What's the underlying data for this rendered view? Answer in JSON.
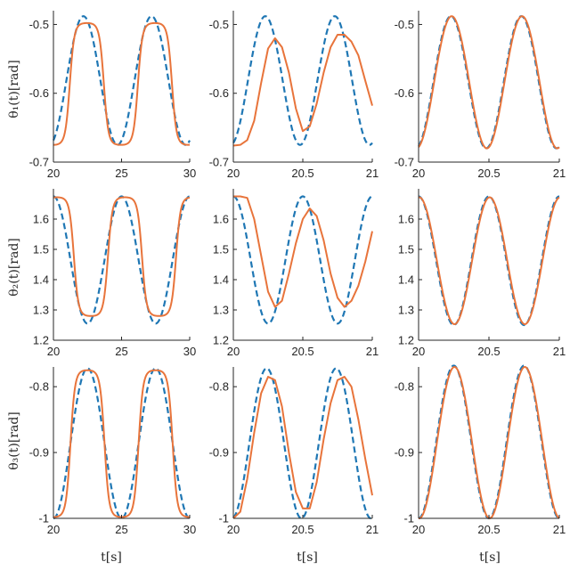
{
  "figure": {
    "row_labels": [
      "θ₁(t)[rad]",
      "θ₂(t)[rad]",
      "θ₃(t)[rad]"
    ],
    "x_label": "t[s]",
    "colors": {
      "reference": "#1f77b4",
      "actual": "#e8743b",
      "axes": "#262626"
    }
  },
  "chart_data": [
    {
      "type": "line",
      "panel": "r1c1",
      "xlim": [
        20,
        30
      ],
      "ylim": [
        -0.7,
        -0.48
      ],
      "xticks": [
        20,
        25,
        30
      ],
      "yticks": [
        -0.7,
        -0.6,
        -0.5
      ],
      "series": [
        {
          "style": "dashed",
          "model": "sine",
          "period": 5.0,
          "peak_x": 22.2,
          "min": -0.675,
          "max": -0.488
        },
        {
          "style": "solid",
          "model": "flat-top",
          "period": 5.0,
          "peak_x": 22.45,
          "min": -0.675,
          "max": -0.498
        }
      ]
    },
    {
      "type": "line",
      "panel": "r1c2",
      "xlim": [
        20,
        21
      ],
      "ylim": [
        -0.7,
        -0.48
      ],
      "xticks": [
        20,
        20.5,
        21
      ],
      "yticks": [
        -0.7,
        -0.6,
        -0.5
      ],
      "series": [
        {
          "style": "dashed",
          "model": "sine",
          "period": 0.5,
          "peak_x": 20.23,
          "min": -0.675,
          "max": -0.488
        },
        {
          "style": "solid",
          "points": [
            [
              20,
              -0.676
            ],
            [
              20.05,
              -0.675
            ],
            [
              20.1,
              -0.668
            ],
            [
              20.15,
              -0.64
            ],
            [
              20.2,
              -0.585
            ],
            [
              20.25,
              -0.535
            ],
            [
              20.3,
              -0.52
            ],
            [
              20.35,
              -0.533
            ],
            [
              20.4,
              -0.57
            ],
            [
              20.45,
              -0.622
            ],
            [
              20.5,
              -0.655
            ],
            [
              20.55,
              -0.648
            ],
            [
              20.6,
              -0.615
            ],
            [
              20.65,
              -0.57
            ],
            [
              20.7,
              -0.533
            ],
            [
              20.75,
              -0.515
            ],
            [
              20.8,
              -0.515
            ],
            [
              20.85,
              -0.525
            ],
            [
              20.9,
              -0.545
            ],
            [
              20.95,
              -0.582
            ],
            [
              21,
              -0.618
            ]
          ]
        }
      ]
    },
    {
      "type": "line",
      "panel": "r1c3",
      "xlim": [
        20,
        21
      ],
      "ylim": [
        -0.7,
        -0.48
      ],
      "xticks": [
        20,
        20.5,
        21
      ],
      "yticks": [
        -0.7,
        -0.6,
        -0.5
      ],
      "series": [
        {
          "style": "dashed",
          "model": "sine",
          "period": 0.5,
          "peak_x": 20.23,
          "min": -0.68,
          "max": -0.488
        },
        {
          "style": "solid",
          "model": "sine",
          "period": 0.5,
          "peak_x": 20.235,
          "min": -0.68,
          "max": -0.488
        }
      ]
    },
    {
      "type": "line",
      "panel": "r2c1",
      "xlim": [
        20,
        30
      ],
      "ylim": [
        1.2,
        1.7
      ],
      "xticks": [
        20,
        25,
        30
      ],
      "yticks": [
        1.2,
        1.3,
        1.4,
        1.5,
        1.6
      ],
      "series": [
        {
          "style": "dashed",
          "model": "sine",
          "period": 5.0,
          "peak_x": 20.0,
          "min": 1.255,
          "max": 1.675
        },
        {
          "style": "solid",
          "model": "flat-top",
          "period": 5.0,
          "peak_x": 25.25,
          "min": 1.28,
          "max": 1.672
        }
      ]
    },
    {
      "type": "line",
      "panel": "r2c2",
      "xlim": [
        20,
        21
      ],
      "ylim": [
        1.2,
        1.7
      ],
      "xticks": [
        20,
        20.5,
        21
      ],
      "yticks": [
        1.2,
        1.3,
        1.4,
        1.5,
        1.6
      ],
      "series": [
        {
          "style": "dashed",
          "model": "sine",
          "period": 0.5,
          "peak_x": 20.5,
          "min": 1.255,
          "max": 1.675
        },
        {
          "style": "solid",
          "points": [
            [
              20,
              1.675
            ],
            [
              20.05,
              1.675
            ],
            [
              20.1,
              1.67
            ],
            [
              20.15,
              1.6
            ],
            [
              20.2,
              1.48
            ],
            [
              20.25,
              1.36
            ],
            [
              20.3,
              1.31
            ],
            [
              20.35,
              1.33
            ],
            [
              20.4,
              1.42
            ],
            [
              20.45,
              1.52
            ],
            [
              20.5,
              1.6
            ],
            [
              20.55,
              1.635
            ],
            [
              20.6,
              1.61
            ],
            [
              20.65,
              1.53
            ],
            [
              20.7,
              1.42
            ],
            [
              20.75,
              1.34
            ],
            [
              20.8,
              1.31
            ],
            [
              20.85,
              1.33
            ],
            [
              20.9,
              1.38
            ],
            [
              20.95,
              1.46
            ],
            [
              21,
              1.56
            ]
          ]
        }
      ]
    },
    {
      "type": "line",
      "panel": "r2c3",
      "xlim": [
        20,
        21
      ],
      "ylim": [
        1.2,
        1.7
      ],
      "xticks": [
        20,
        20.5,
        21
      ],
      "yticks": [
        1.2,
        1.3,
        1.4,
        1.5,
        1.6
      ],
      "series": [
        {
          "style": "dashed",
          "model": "sine",
          "period": 0.5,
          "peak_x": 20.0,
          "min": 1.25,
          "max": 1.675
        },
        {
          "style": "solid",
          "model": "sine",
          "period": 0.5,
          "peak_x": 20.005,
          "min": 1.253,
          "max": 1.672
        }
      ]
    },
    {
      "type": "line",
      "panel": "r3c1",
      "xlim": [
        20,
        30
      ],
      "ylim": [
        -1.0,
        -0.77
      ],
      "xticks": [
        20,
        25,
        30
      ],
      "yticks": [
        -1,
        -0.9,
        -0.8
      ],
      "series": [
        {
          "style": "dashed",
          "model": "sine",
          "period": 5.0,
          "peak_x": 22.5,
          "min": -1.0,
          "max": -0.772
        },
        {
          "style": "solid",
          "model": "flat-top",
          "period": 5.0,
          "peak_x": 22.5,
          "min": -0.998,
          "max": -0.775
        }
      ]
    },
    {
      "type": "line",
      "panel": "r3c2",
      "xlim": [
        20,
        21
      ],
      "ylim": [
        -1.0,
        -0.77
      ],
      "xticks": [
        20,
        20.5,
        21
      ],
      "yticks": [
        -1,
        -0.9,
        -0.8
      ],
      "series": [
        {
          "style": "dashed",
          "model": "sine",
          "period": 0.5,
          "peak_x": 20.24,
          "min": -1.0,
          "max": -0.772
        },
        {
          "style": "solid",
          "points": [
            [
              20,
              -1.0
            ],
            [
              20.05,
              -0.99
            ],
            [
              20.1,
              -0.94
            ],
            [
              20.15,
              -0.87
            ],
            [
              20.2,
              -0.81
            ],
            [
              20.25,
              -0.785
            ],
            [
              20.3,
              -0.79
            ],
            [
              20.35,
              -0.83
            ],
            [
              20.4,
              -0.9
            ],
            [
              20.45,
              -0.96
            ],
            [
              20.5,
              -0.985
            ],
            [
              20.55,
              -0.985
            ],
            [
              20.6,
              -0.945
            ],
            [
              20.65,
              -0.88
            ],
            [
              20.7,
              -0.825
            ],
            [
              20.75,
              -0.79
            ],
            [
              20.8,
              -0.785
            ],
            [
              20.85,
              -0.8
            ],
            [
              20.9,
              -0.85
            ],
            [
              20.95,
              -0.91
            ],
            [
              21,
              -0.965
            ]
          ]
        }
      ]
    },
    {
      "type": "line",
      "panel": "r3c3",
      "xlim": [
        20,
        21
      ],
      "ylim": [
        -1.0,
        -0.77
      ],
      "xticks": [
        20,
        20.5,
        21
      ],
      "yticks": [
        -1,
        -0.9,
        -0.8
      ],
      "series": [
        {
          "style": "dashed",
          "model": "sine",
          "period": 0.5,
          "peak_x": 20.25,
          "min": -1.0,
          "max": -0.768
        },
        {
          "style": "solid",
          "model": "sine",
          "period": 0.5,
          "peak_x": 20.255,
          "min": -1.0,
          "max": -0.77
        }
      ]
    }
  ]
}
